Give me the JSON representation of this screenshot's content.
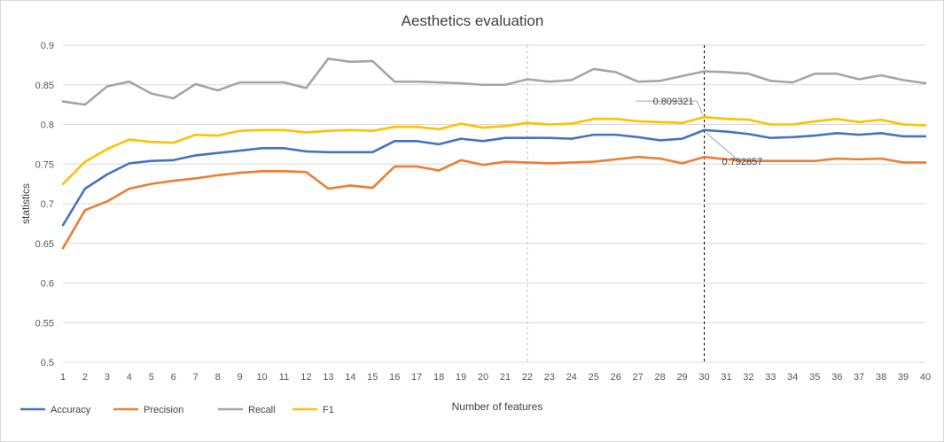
{
  "chart_data": {
    "type": "line",
    "title": "Aesthetics evaluation",
    "xlabel": "Number of features",
    "ylabel": "statistics",
    "x": [
      1,
      2,
      3,
      4,
      5,
      6,
      7,
      8,
      9,
      10,
      11,
      12,
      13,
      14,
      15,
      16,
      17,
      18,
      19,
      20,
      21,
      22,
      23,
      24,
      25,
      26,
      27,
      28,
      29,
      30,
      31,
      32,
      33,
      34,
      35,
      36,
      37,
      38,
      39,
      40
    ],
    "ylim": [
      0.5,
      0.9
    ],
    "yticks": [
      0.5,
      0.55,
      0.6,
      0.65,
      0.7,
      0.75,
      0.8,
      0.85,
      0.9
    ],
    "grid": true,
    "legend_position": "bottom-left",
    "series": [
      {
        "name": "Accuracy",
        "color": "#4472C4",
        "values": [
          0.673,
          0.719,
          0.737,
          0.751,
          0.754,
          0.755,
          0.761,
          0.764,
          0.767,
          0.77,
          0.77,
          0.766,
          0.765,
          0.765,
          0.765,
          0.779,
          0.779,
          0.775,
          0.782,
          0.779,
          0.783,
          0.783,
          0.783,
          0.782,
          0.787,
          0.787,
          0.784,
          0.78,
          0.782,
          0.792857,
          0.791,
          0.788,
          0.783,
          0.784,
          0.786,
          0.789,
          0.787,
          0.789,
          0.785,
          0.785
        ]
      },
      {
        "name": "Precision",
        "color": "#ED7D31",
        "values": [
          0.644,
          0.692,
          0.703,
          0.719,
          0.725,
          0.729,
          0.732,
          0.736,
          0.739,
          0.741,
          0.741,
          0.74,
          0.719,
          0.723,
          0.72,
          0.747,
          0.747,
          0.742,
          0.755,
          0.749,
          0.753,
          0.752,
          0.751,
          0.752,
          0.753,
          0.756,
          0.759,
          0.757,
          0.751,
          0.759,
          0.756,
          0.754,
          0.754,
          0.754,
          0.754,
          0.757,
          0.756,
          0.757,
          0.752,
          0.752
        ]
      },
      {
        "name": "Recall",
        "color": "#A5A5A5",
        "values": [
          0.829,
          0.825,
          0.848,
          0.854,
          0.839,
          0.833,
          0.851,
          0.843,
          0.853,
          0.853,
          0.853,
          0.846,
          0.883,
          0.879,
          0.88,
          0.854,
          0.854,
          0.853,
          0.852,
          0.85,
          0.85,
          0.857,
          0.854,
          0.856,
          0.87,
          0.866,
          0.854,
          0.855,
          0.861,
          0.867,
          0.866,
          0.864,
          0.855,
          0.853,
          0.864,
          0.864,
          0.857,
          0.862,
          0.856,
          0.852
        ]
      },
      {
        "name": "F1",
        "color": "#FFC000",
        "values": [
          0.725,
          0.753,
          0.769,
          0.781,
          0.778,
          0.777,
          0.787,
          0.786,
          0.792,
          0.793,
          0.793,
          0.79,
          0.792,
          0.793,
          0.792,
          0.797,
          0.797,
          0.794,
          0.801,
          0.796,
          0.798,
          0.802,
          0.8,
          0.801,
          0.807,
          0.807,
          0.804,
          0.803,
          0.802,
          0.809321,
          0.807,
          0.806,
          0.8,
          0.8,
          0.804,
          0.807,
          0.803,
          0.806,
          0.8,
          0.799
        ]
      }
    ],
    "vlines": [
      {
        "x": 22,
        "style": "dashed",
        "color": "#bfbfbf"
      },
      {
        "x": 30,
        "style": "dashed",
        "color": "#000000"
      }
    ],
    "annotations": [
      {
        "text": "0.809321",
        "x": 30,
        "y": 0.809321
      },
      {
        "text": "0.792857",
        "x": 30,
        "y": 0.792857
      }
    ]
  }
}
